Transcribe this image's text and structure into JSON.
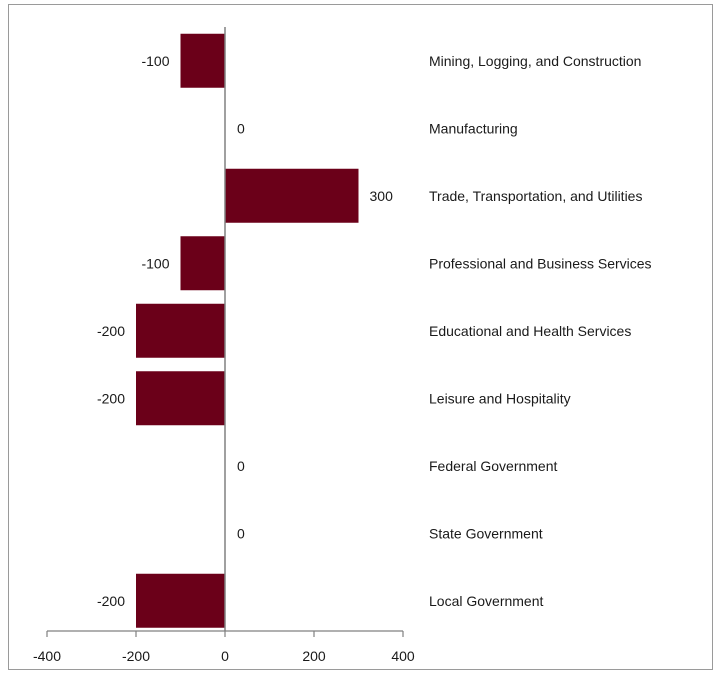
{
  "chart_data": {
    "type": "bar",
    "orientation": "horizontal",
    "categories": [
      "Mining, Logging, and Construction",
      "Manufacturing",
      "Trade, Transportation, and Utilities",
      "Professional and Business Services",
      "Educational and Health Services",
      "Leisure and Hospitality",
      "Federal Government",
      "State Government",
      "Local Government"
    ],
    "values": [
      -100,
      0,
      300,
      -100,
      -200,
      -200,
      0,
      0,
      -200
    ],
    "data_labels": [
      "-100",
      "0",
      "300",
      "-100",
      "-200",
      "-200",
      "0",
      "0",
      "-200"
    ],
    "xlim": [
      -400,
      400
    ],
    "xticks": [
      -400,
      -200,
      0,
      200,
      400
    ],
    "xtick_labels": [
      "-400",
      "-200",
      "0",
      "200",
      "400"
    ],
    "title": "",
    "xlabel": "",
    "ylabel": "",
    "grid": false,
    "legend": "none",
    "bar_color": "#6b0019",
    "axis_color": "#808080",
    "category_label_position": "right"
  }
}
